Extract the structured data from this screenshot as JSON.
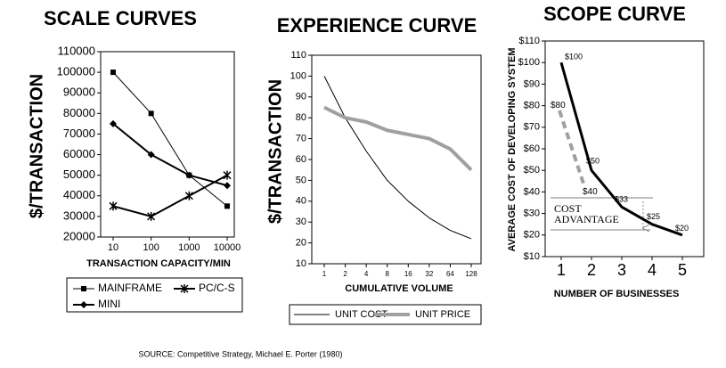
{
  "chart_data": [
    {
      "type": "line",
      "title": "SCALE CURVES",
      "ylabel": "$/TRANSACTION",
      "xlabel": "TRANSACTION CAPACITY/MIN",
      "categories": [
        "10",
        "100",
        "1000",
        "10000"
      ],
      "ylim": [
        20000,
        110000
      ],
      "yticks": [
        20000,
        30000,
        40000,
        50000,
        60000,
        70000,
        80000,
        90000,
        100000,
        110000
      ],
      "series": [
        {
          "name": "MAINFRAME",
          "color": "#000000",
          "marker": "square",
          "values": [
            100000,
            80000,
            50000,
            35000
          ]
        },
        {
          "name": "PC/C-S",
          "color": "#000000",
          "marker": "star",
          "values": [
            35000,
            30000,
            40000,
            50000
          ]
        },
        {
          "name": "MINI",
          "color": "#000000",
          "marker": "diamond",
          "values": [
            75000,
            60000,
            50000,
            45000
          ]
        }
      ]
    },
    {
      "type": "line",
      "title": "EXPERIENCE CURVE",
      "ylabel": "$/TRANSACTION",
      "xlabel": "CUMULATIVE VOLUME",
      "categories": [
        "1",
        "2",
        "4",
        "8",
        "16",
        "32",
        "64",
        "128"
      ],
      "ylim": [
        10,
        110
      ],
      "yticks": [
        10,
        20,
        30,
        40,
        50,
        60,
        70,
        80,
        90,
        100,
        110
      ],
      "series": [
        {
          "name": "UNIT COST",
          "color": "#000000",
          "values": [
            100,
            80,
            64,
            50,
            40,
            32,
            26,
            22
          ]
        },
        {
          "name": "UNIT PRICE",
          "color": "#a0a0a0",
          "values": [
            85,
            80,
            78,
            74,
            72,
            70,
            65,
            55
          ]
        }
      ]
    },
    {
      "type": "line",
      "title": "SCOPE CURVE",
      "ylabel": "AVERAGE COST OF DEVELOPING SYSTEM",
      "xlabel": "NUMBER OF BUSINESSES",
      "categories": [
        "1",
        "2",
        "3",
        "4",
        "5"
      ],
      "ylim": [
        10,
        110
      ],
      "yticks": [
        {
          "value": 10,
          "label": "$10"
        },
        {
          "value": 20,
          "label": "$20"
        },
        {
          "value": 30,
          "label": "$30"
        },
        {
          "value": 40,
          "label": "$40"
        },
        {
          "value": 50,
          "label": "$50"
        },
        {
          "value": 60,
          "label": "$60"
        },
        {
          "value": 70,
          "label": "$70"
        },
        {
          "value": 80,
          "label": "$80"
        },
        {
          "value": 90,
          "label": "$90"
        },
        {
          "value": 100,
          "label": "$100"
        },
        {
          "value": 110,
          "label": "$110"
        }
      ],
      "annotation": [
        "COST",
        "ADVANTAGE"
      ],
      "series": [
        {
          "color": "#000000",
          "values": [
            100,
            50,
            33,
            25,
            20
          ],
          "value_labels": [
            "$100",
            "$50",
            "$33",
            "$25",
            "$20"
          ]
        },
        {
          "color": "#a0a0a0",
          "dashed": true,
          "values": [
            80,
            40,
            null,
            null,
            null
          ],
          "value_labels": [
            "$80",
            "$40",
            null,
            null,
            null
          ]
        }
      ]
    }
  ],
  "source": "SOURCE: Competitive Strategy, Michael E. Porter (1980)"
}
